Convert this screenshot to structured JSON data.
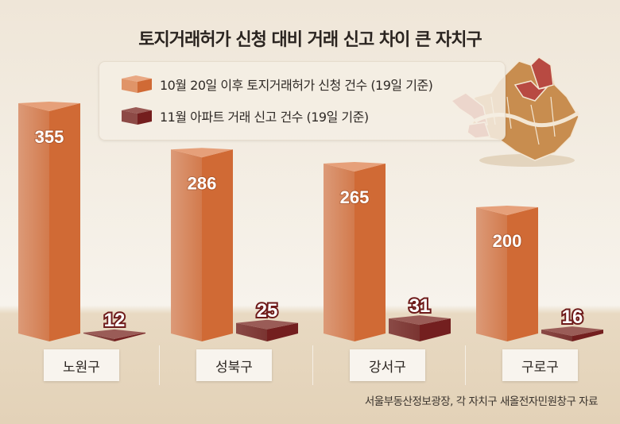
{
  "colors": {
    "series1": "#d36d3a",
    "series1_light": "#e8a07a",
    "series2": "#7a2222",
    "series2_light": "#8d4a46",
    "map_base": "#c88d4f",
    "map_highlight": "#b84a42"
  },
  "chart_data": {
    "type": "bar",
    "title": "토지거래허가 신청 대비 거래 신고 차이 큰 자치구",
    "categories": [
      "노원구",
      "성북구",
      "강서구",
      "구로구"
    ],
    "series": [
      {
        "name": "10월 20일 이후 토지거래허가 신청 건수 (19일 기준)",
        "values": [
          355,
          286,
          265,
          200
        ]
      },
      {
        "name": "11월 아파트 거래 신고 건수 (19일 기준)",
        "values": [
          12,
          25,
          31,
          16
        ]
      }
    ],
    "xlabel": "",
    "ylabel": "",
    "ylim": [
      0,
      355
    ],
    "grid": false,
    "legend": "top-center",
    "source": "서울부동산정보광장, 각 자치구 새올전자민원창구 자료"
  }
}
